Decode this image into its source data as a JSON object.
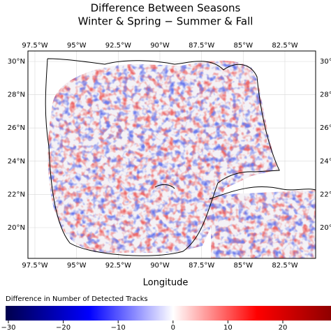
{
  "title": [
    "Difference Between Seasons",
    "Winter & Spring − Summer & Fall"
  ],
  "x_label": "Longitude",
  "lon_ticks": [
    {
      "value": -97.5,
      "label": "97.5°W"
    },
    {
      "value": -95,
      "label": "95°W"
    },
    {
      "value": -92.5,
      "label": "92.5°W"
    },
    {
      "value": -90,
      "label": "90°W"
    },
    {
      "value": -87.5,
      "label": "87.5°W"
    },
    {
      "value": -85,
      "label": "85°W"
    },
    {
      "value": -82.5,
      "label": "82.5°W"
    }
  ],
  "lat_ticks": [
    {
      "value": 30,
      "label": "30°N"
    },
    {
      "value": 28,
      "label": "28°N"
    },
    {
      "value": 26,
      "label": "26°N"
    },
    {
      "value": 24,
      "label": "24°N"
    },
    {
      "value": 22,
      "label": "22°N"
    },
    {
      "value": 20,
      "label": "20°N"
    }
  ],
  "colorbar": {
    "label": "Difference in Number of Detected Tracks",
    "ticks": [
      {
        "value": -30,
        "label": "−30"
      },
      {
        "value": -20,
        "label": "−20"
      },
      {
        "value": -10,
        "label": "−10"
      },
      0,
      10,
      20
    ]
  }
}
